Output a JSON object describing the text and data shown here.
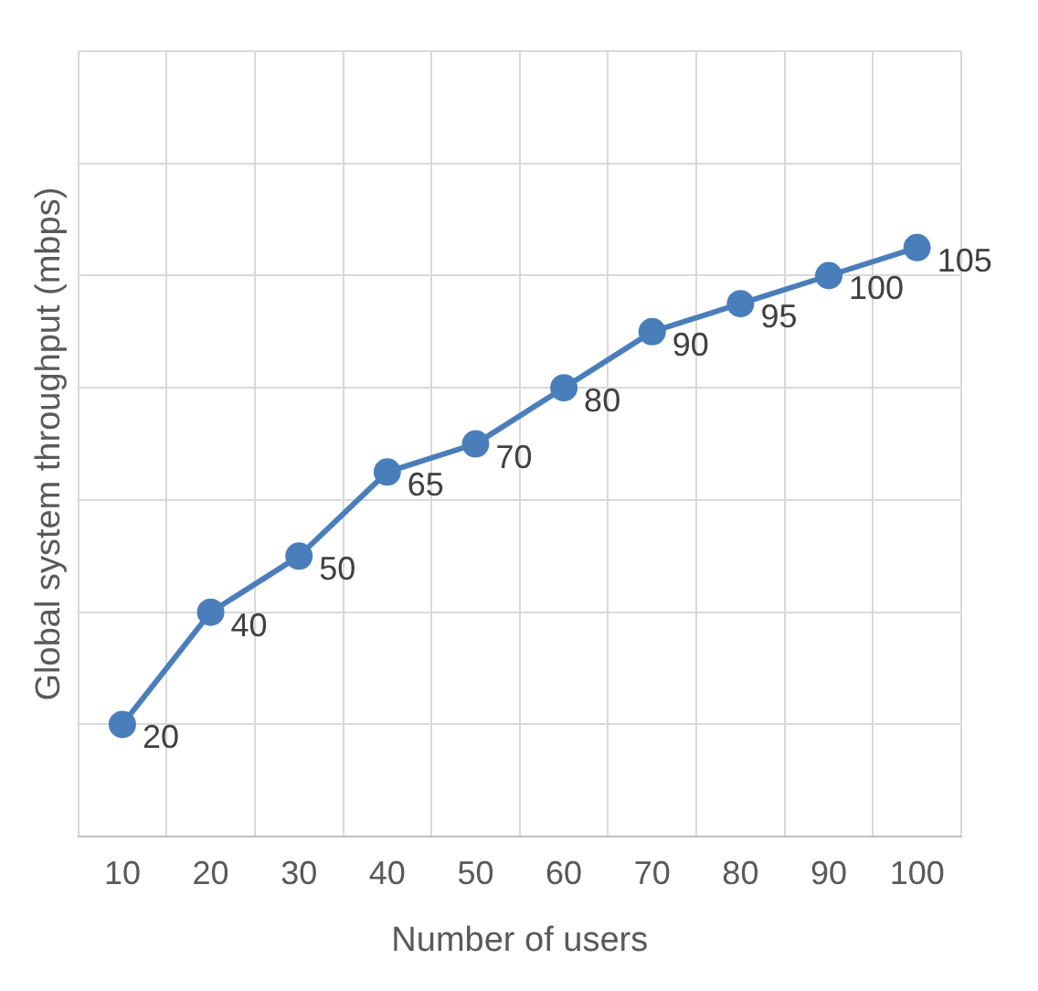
{
  "chart_data": {
    "type": "line",
    "xlabel": "Number of users",
    "ylabel": "Global system throughput (mbps)",
    "categories": [
      "10",
      "20",
      "30",
      "40",
      "50",
      "60",
      "70",
      "80",
      "90",
      "100"
    ],
    "series": [
      {
        "color": "#4a7ebb",
        "values": [
          20,
          40,
          50,
          65,
          70,
          80,
          90,
          95,
          100,
          105
        ]
      }
    ],
    "ylim": [
      0,
      140
    ],
    "yticks": [
      {
        "value": 0,
        "label": null
      },
      {
        "value": 20,
        "label": null
      },
      {
        "value": 40,
        "label": null
      },
      {
        "value": 60,
        "label": null
      },
      {
        "value": 80,
        "label": null
      },
      {
        "value": 100,
        "label": null
      },
      {
        "value": 120,
        "label": null
      },
      {
        "value": 140,
        "label": null
      }
    ],
    "tick_labels": "x",
    "grid": true,
    "marker": "circle",
    "line_style": "solid",
    "data_labels": true,
    "legend": false
  }
}
